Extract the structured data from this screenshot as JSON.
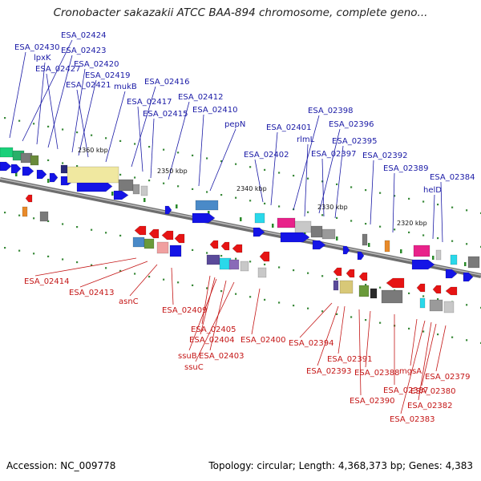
{
  "title": "Cronobacter sakazakii ATCC BAA-894 chromosome, complete geno...",
  "footer": {
    "accession": "Accession: NC_009778",
    "summary": "Topology: circular; Length: 4,368,373 bp; Genes: 4,383"
  },
  "colors": {
    "backbone": "#8c8c8c",
    "forward_strand": "#1414e6",
    "reverse_strand": "#e61414",
    "forward_label": "#1a1aa6",
    "reverse_label": "#c41616",
    "tick": "#2a8a2a"
  },
  "scale_labels": [
    "2360 kbp",
    "2350 kbp",
    "2340 kbp",
    "2330 kbp",
    "2320 kbp"
  ],
  "top_labels": [
    "ESA_02430",
    "ESA_02424",
    "lpxK",
    "ESA_02423",
    "ESA_02427",
    "ESA_02420",
    "ESA_02419",
    "ESA_02421",
    "mukB",
    "ESA_02416",
    "ESA_02417",
    "ESA_02412",
    "ESA_02415",
    "ESA_02410",
    "pepN",
    "ESA_02398",
    "ESA_02401",
    "ESA_02396",
    "rlmL",
    "ESA_02395",
    "ESA_02402",
    "ESA_02397",
    "ESA_02392",
    "ESA_02389",
    "ESA_02384",
    "helD"
  ],
  "bottom_labels": [
    "ESA_02414",
    "ESA_02413",
    "asnC",
    "ESA_02409",
    "ESA_02405",
    "ESA_02404",
    "ssuB",
    "ESA_02403",
    "ssuC",
    "ESA_02400",
    "ESA_02394",
    "ESA_02391",
    "ESA_02393",
    "ESA_02388",
    "mgsA",
    "ESA_02379",
    "ESA_02387",
    "ESA_02380",
    "ESA_02390",
    "ESA_02382",
    "ESA_02383"
  ]
}
